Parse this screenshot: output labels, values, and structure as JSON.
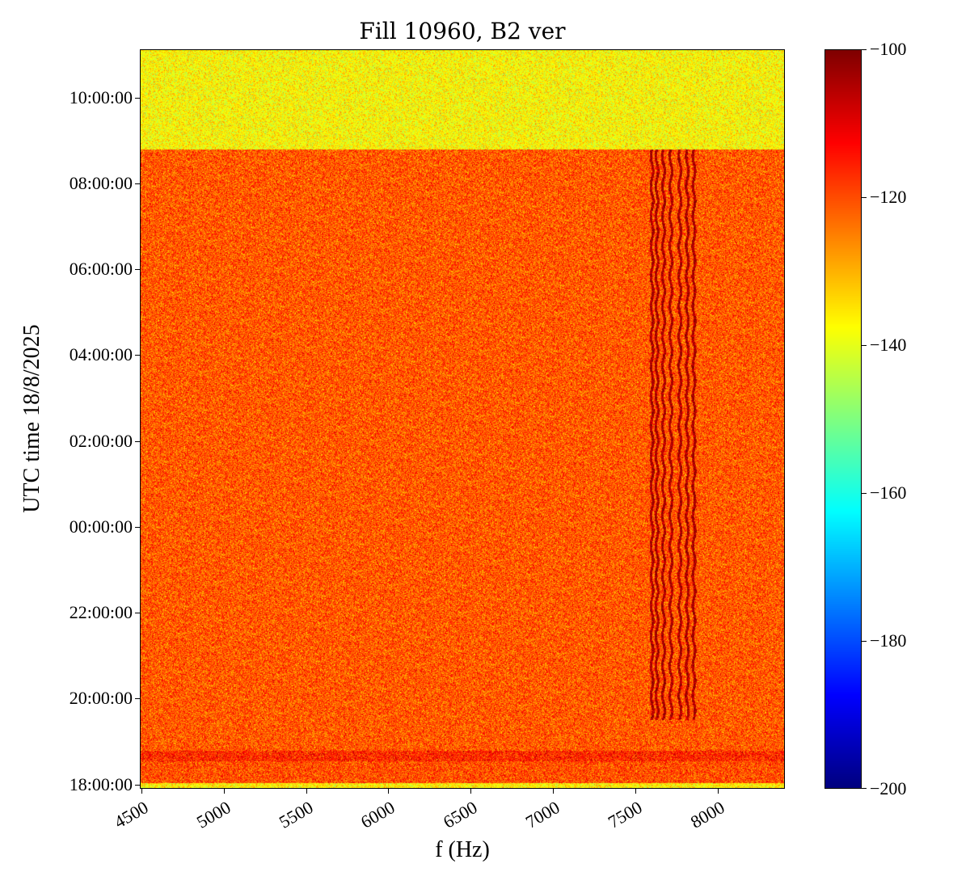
{
  "chart_data": {
    "type": "heatmap",
    "title": "Fill 10960, B2 ver",
    "xlabel": "f (Hz)",
    "ylabel": "UTC time 18/8/2025",
    "xlim": [
      4490,
      8410
    ],
    "ylim_hours": [
      17.9,
      35.12
    ],
    "x_ticks": [
      4500,
      5000,
      5500,
      6000,
      6500,
      7000,
      7500,
      8000
    ],
    "x_tick_labels": [
      "4500",
      "5000",
      "5500",
      "6000",
      "6500",
      "7000",
      "7500",
      "8000"
    ],
    "y_tick_hours": [
      18,
      20,
      22,
      24,
      26,
      28,
      30,
      32,
      34
    ],
    "y_tick_labels": [
      "18:00:00",
      "20:00:00",
      "22:00:00",
      "00:00:00",
      "02:00:00",
      "04:00:00",
      "06:00:00",
      "08:00:00",
      "10:00:00"
    ],
    "colormap": "jet",
    "colorbar": {
      "range": [
        -200,
        -100
      ],
      "ticks": [
        -100,
        -120,
        -140,
        -160,
        -180,
        -200
      ],
      "tick_labels": [
        "−100",
        "−120",
        "−140",
        "−160",
        "−180",
        "−200"
      ]
    },
    "regions_dB": [
      {
        "from_hours": 17.9,
        "to_hours": 18.05,
        "level": -136
      },
      {
        "from_hours": 18.05,
        "to_hours": 18.55,
        "level": -120
      },
      {
        "from_hours": 18.55,
        "to_hours": 18.8,
        "level": -116
      },
      {
        "from_hours": 18.8,
        "to_hours": 32.8,
        "level": -121
      },
      {
        "from_hours": 32.8,
        "to_hours": 35.12,
        "level": -137
      }
    ],
    "lines": {
      "frequencies_hz": [
        7600,
        7630,
        7670,
        7715,
        7770,
        7815,
        7855
      ],
      "from_hours": 19.5,
      "to_hours": 32.8,
      "level": -104
    },
    "grid": false
  }
}
